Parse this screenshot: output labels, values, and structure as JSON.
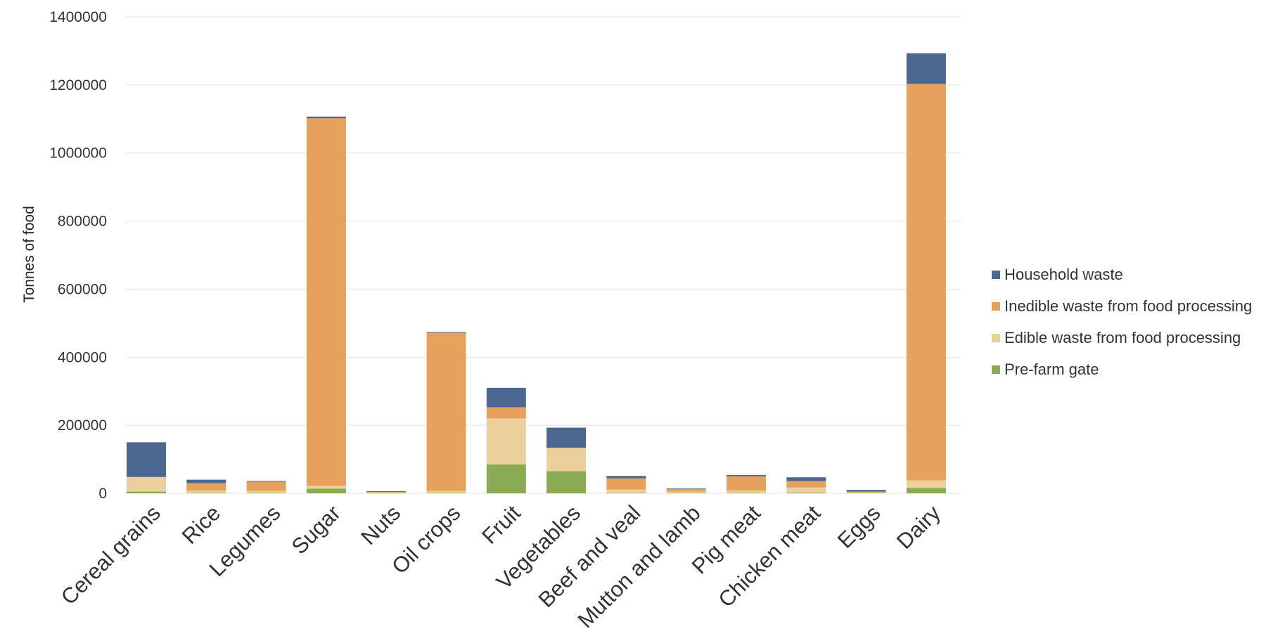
{
  "chart_data": {
    "type": "bar",
    "stacked": true,
    "ylabel": "Tonnes of food",
    "xlabel": "",
    "ylim": [
      0,
      1400000
    ],
    "yticks": [
      0,
      200000,
      400000,
      600000,
      800000,
      1000000,
      1200000,
      1400000
    ],
    "ytick_labels": [
      "0",
      "200000",
      "400000",
      "600000",
      "800000",
      "1000000",
      "1200000",
      "1400000"
    ],
    "grid": true,
    "legend_position": "right",
    "categories": [
      "Cereal grains",
      "Rice",
      "Legumes",
      "Sugar",
      "Nuts",
      "Oil crops",
      "Fruit",
      "Vegetables",
      "Beef and veal",
      "Mutton and lamb",
      "Pig meat",
      "Chicken meat",
      "Eggs",
      "Dairy"
    ],
    "series": [
      {
        "name": "Pre-farm gate",
        "color": "#8aab52",
        "values": [
          5000,
          1000,
          1000,
          14000,
          1000,
          1000,
          85000,
          65000,
          1000,
          1000,
          1000,
          2000,
          1000,
          16000
        ]
      },
      {
        "name": "Edible waste from food processing",
        "color": "#ecd09c",
        "values": [
          43000,
          7000,
          6000,
          8000,
          2000,
          6000,
          135000,
          68000,
          10000,
          4000,
          7000,
          15000,
          2000,
          22000
        ]
      },
      {
        "name": "Inedible waste from food processing",
        "color": "#e6a25c",
        "values": [
          0,
          22000,
          27000,
          1080000,
          1000,
          465000,
          33000,
          1000,
          33000,
          7000,
          42000,
          19000,
          2000,
          1165000
        ]
      },
      {
        "name": "Household waste",
        "color": "#4d6890",
        "values": [
          102000,
          10000,
          2000,
          5000,
          2000,
          2000,
          57000,
          59000,
          7000,
          1000,
          4000,
          11000,
          5000,
          90000
        ]
      }
    ],
    "legend_order": [
      "Household waste",
      "Inedible waste from food processing",
      "Edible waste from food processing",
      "Pre-farm gate"
    ]
  }
}
